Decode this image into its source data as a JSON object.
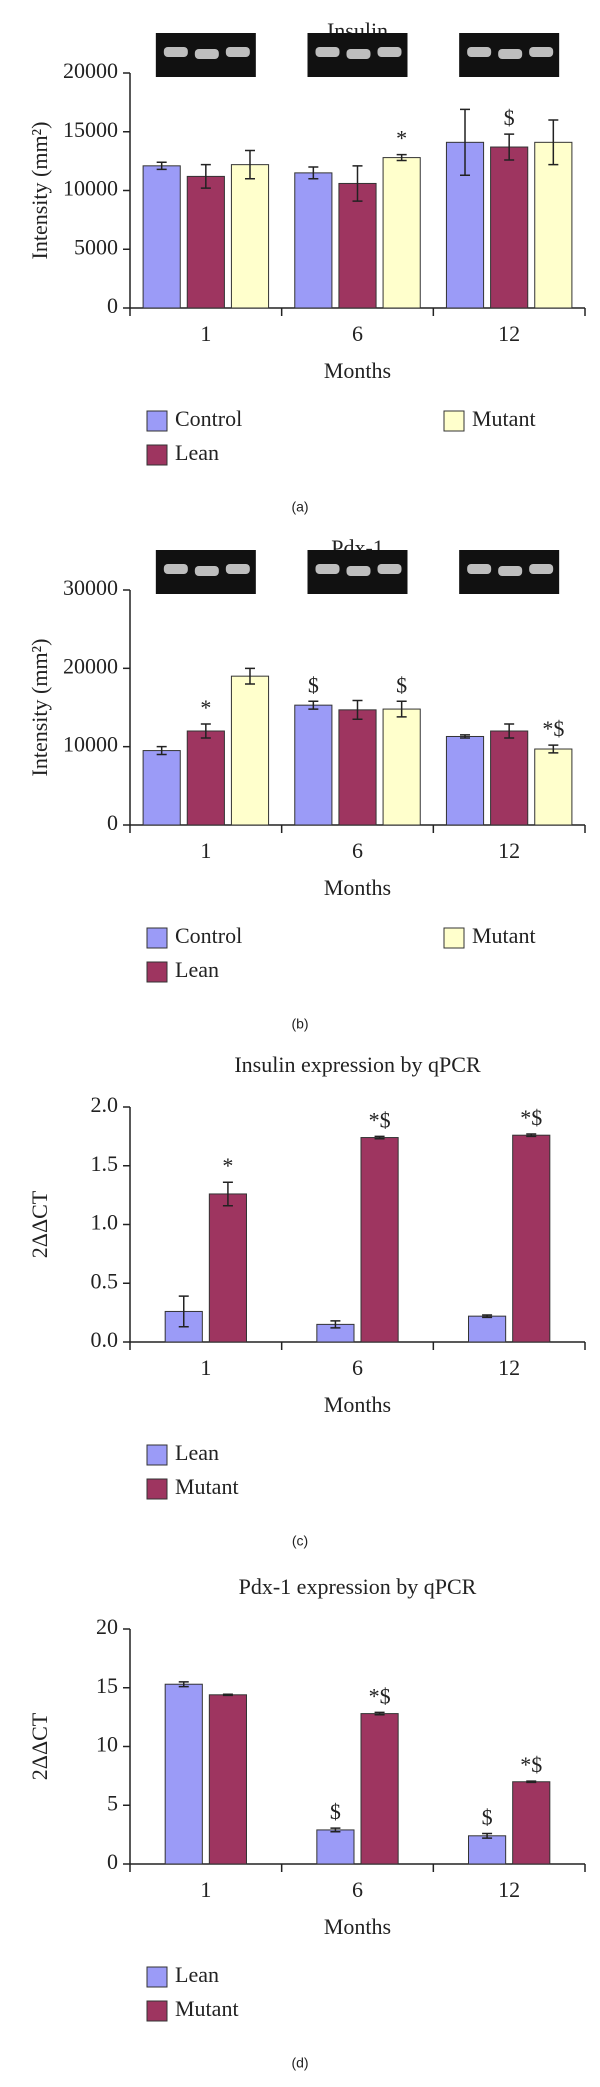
{
  "chart_data": [
    {
      "type": "bar",
      "title": "Insulin",
      "panel_label": "(a)",
      "ylabel": "Intensity (mm²)",
      "xlabel": "Months",
      "gel_images": true,
      "categories": [
        "1",
        "6",
        "12"
      ],
      "ylim": [
        0,
        20000
      ],
      "yticks": [
        0,
        5000,
        10000,
        15000,
        20000
      ],
      "series": [
        {
          "name": "Control",
          "color": "#9b9bf7",
          "values": [
            12100,
            11500,
            14100
          ],
          "errors": [
            300,
            500,
            2800
          ],
          "markers": [
            null,
            null,
            null
          ]
        },
        {
          "name": "Lean",
          "color": "#9e3560",
          "values": [
            11200,
            10600,
            13700
          ],
          "errors": [
            1000,
            1500,
            1100
          ],
          "markers": [
            null,
            null,
            "$"
          ]
        },
        {
          "name": "Mutant",
          "color": "#ffffcc",
          "values": [
            12200,
            12800,
            14100
          ],
          "errors": [
            1200,
            250,
            1900
          ],
          "markers": [
            null,
            "*",
            null
          ]
        }
      ]
    },
    {
      "type": "bar",
      "title": "Pdx-1",
      "panel_label": "(b)",
      "ylabel": "Intensity (mm²)",
      "xlabel": "Months",
      "gel_images": true,
      "categories": [
        "1",
        "6",
        "12"
      ],
      "ylim": [
        0,
        30000
      ],
      "yticks": [
        0,
        10000,
        20000,
        30000
      ],
      "series": [
        {
          "name": "Control",
          "color": "#9b9bf7",
          "values": [
            9500,
            15300,
            11300
          ],
          "errors": [
            500,
            500,
            200
          ],
          "markers": [
            null,
            "$",
            null
          ]
        },
        {
          "name": "Lean",
          "color": "#9e3560",
          "values": [
            12000,
            14700,
            12000
          ],
          "errors": [
            900,
            1200,
            900
          ],
          "markers": [
            "*",
            null,
            null
          ]
        },
        {
          "name": "Mutant",
          "color": "#ffffcc",
          "values": [
            19000,
            14800,
            9700
          ],
          "errors": [
            1000,
            1000,
            500
          ],
          "markers": [
            null,
            "$",
            "*$"
          ]
        }
      ]
    },
    {
      "type": "bar",
      "title": "Insulin expression by qPCR",
      "panel_label": "(c)",
      "ylabel": "2ΔΔCT",
      "xlabel": "Months",
      "gel_images": false,
      "categories": [
        "1",
        "6",
        "12"
      ],
      "ylim": [
        0,
        2
      ],
      "yticks": [
        {
          "value": 0,
          "label": "0.0"
        },
        0.5,
        {
          "value": 1,
          "label": "1.0"
        },
        1.5,
        {
          "value": 2,
          "label": "2.0"
        }
      ],
      "series": [
        {
          "name": "Lean",
          "color": "#9b9bf7",
          "values": [
            0.26,
            0.15,
            0.22
          ],
          "errors": [
            0.13,
            0.03,
            0.01
          ],
          "markers": [
            null,
            null,
            null
          ]
        },
        {
          "name": "Mutant",
          "color": "#9e3560",
          "values": [
            1.26,
            1.74,
            1.76
          ],
          "errors": [
            0.1,
            0.01,
            0.01
          ],
          "markers": [
            "*",
            "*$",
            "*$"
          ]
        }
      ]
    },
    {
      "type": "bar",
      "title": "Pdx-1 expression by qPCR",
      "panel_label": "(d)",
      "ylabel": "2ΔΔCT",
      "xlabel": "Months",
      "gel_images": false,
      "categories": [
        "1",
        "6",
        "12"
      ],
      "ylim": [
        0,
        20
      ],
      "yticks": [
        0,
        5,
        10,
        15,
        20
      ],
      "series": [
        {
          "name": "Lean",
          "color": "#9b9bf7",
          "values": [
            15.3,
            2.9,
            2.4
          ],
          "errors": [
            0.2,
            0.15,
            0.2
          ],
          "markers": [
            null,
            "$",
            "$"
          ]
        },
        {
          "name": "Mutant",
          "color": "#9e3560",
          "values": [
            14.4,
            12.8,
            7.0
          ],
          "errors": [
            0.05,
            0.1,
            0.05
          ],
          "markers": [
            null,
            "*$",
            "*$"
          ]
        }
      ]
    }
  ]
}
